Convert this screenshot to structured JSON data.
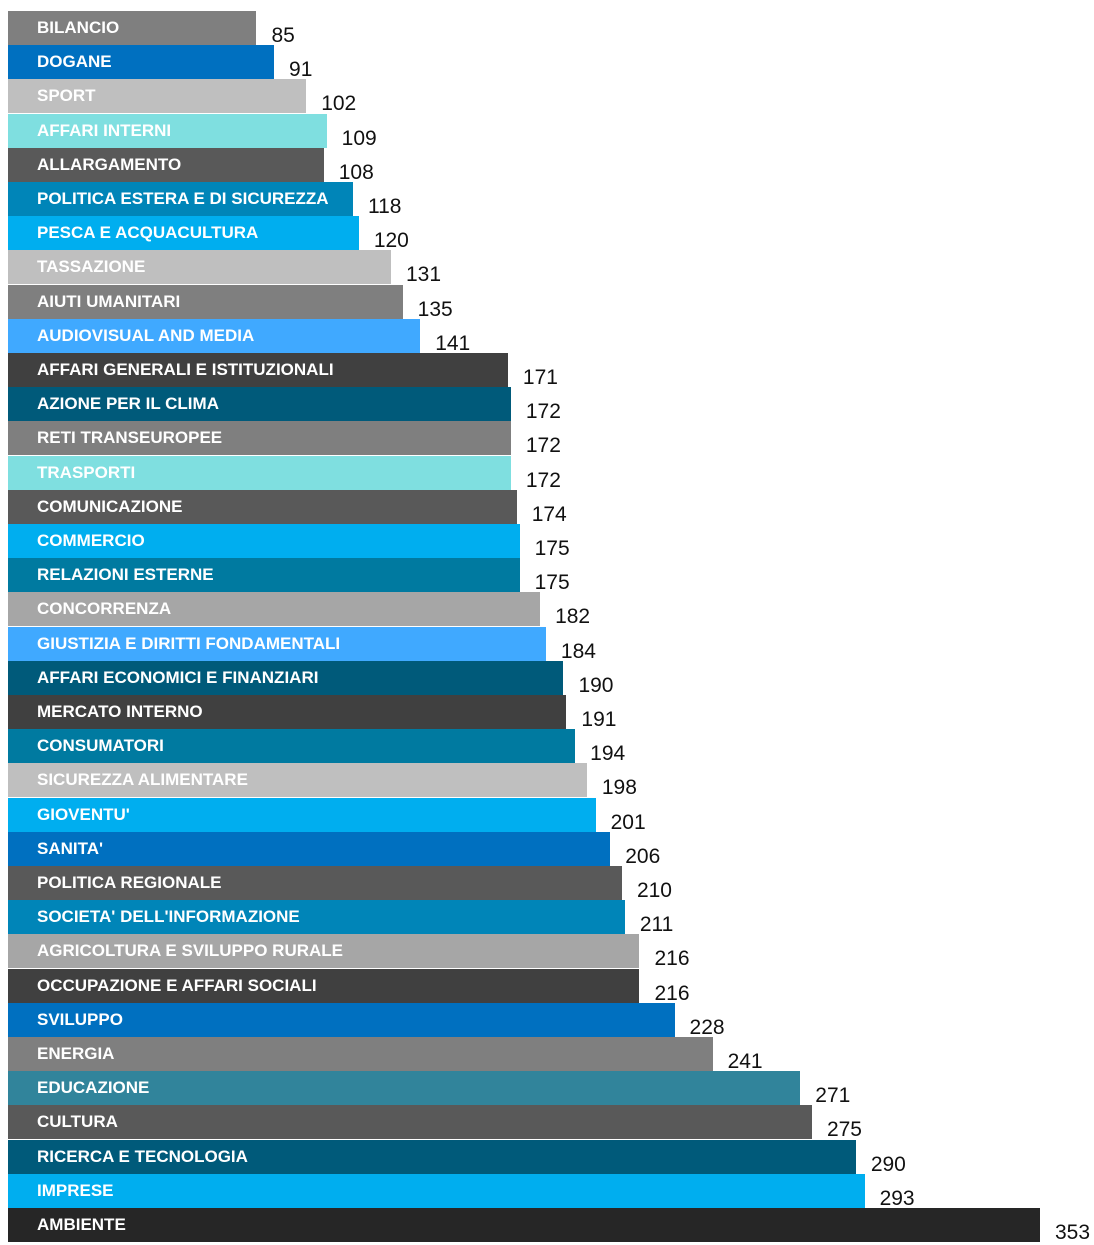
{
  "chart_data": {
    "type": "bar",
    "orientation": "horizontal",
    "title": "",
    "xlabel": "",
    "ylabel": "",
    "xlim": [
      0,
      353
    ],
    "grid": false,
    "legend": "none",
    "categories": [
      "BILANCIO",
      "DOGANE",
      "SPORT",
      "AFFARI INTERNI",
      "ALLARGAMENTO",
      "POLITICA ESTERA E DI SICUREZZA",
      "PESCA E ACQUACULTURA",
      "TASSAZIONE",
      "AIUTI UMANITARI",
      "AUDIOVISUAL AND MEDIA",
      "AFFARI GENERALI E ISTITUZIONALI",
      "AZIONE PER IL CLIMA",
      "RETI TRANSEUROPEE",
      "TRASPORTI",
      "COMUNICAZIONE",
      "COMMERCIO",
      "RELAZIONI ESTERNE",
      "CONCORRENZA",
      "GIUSTIZIA E DIRITTI FONDAMENTALI",
      "AFFARI ECONOMICI E FINANZIARI",
      "MERCATO INTERNO",
      "CONSUMATORI",
      "SICUREZZA ALIMENTARE",
      "GIOVENTU'",
      "SANITA'",
      "POLITICA REGIONALE",
      "SOCIETA' DELL'INFORMAZIONE",
      "AGRICOLTURA E SVILUPPO RURALE",
      "OCCUPAZIONE E AFFARI SOCIALI",
      "SVILUPPO",
      "ENERGIA",
      "EDUCAZIONE",
      "CULTURA",
      "RICERCA E TECNOLOGIA",
      "IMPRESE",
      "AMBIENTE"
    ],
    "values": [
      85,
      91,
      102,
      109,
      108,
      118,
      120,
      131,
      135,
      141,
      171,
      172,
      172,
      172,
      174,
      175,
      175,
      182,
      184,
      190,
      191,
      194,
      198,
      201,
      206,
      210,
      211,
      216,
      216,
      228,
      241,
      271,
      275,
      290,
      293,
      353
    ],
    "colors": [
      "#7f7f7f",
      "#0070c0",
      "#bfbfbf",
      "#7fdfe0",
      "#595959",
      "#0085b8",
      "#00aeef",
      "#bfbfbf",
      "#7f7f7f",
      "#40a9ff",
      "#404040",
      "#005a7a",
      "#7f7f7f",
      "#7fdfe0",
      "#595959",
      "#00aeef",
      "#007aa0",
      "#a6a6a6",
      "#40a9ff",
      "#005a7a",
      "#404040",
      "#007aa0",
      "#bfbfbf",
      "#00aeef",
      "#0070c0",
      "#595959",
      "#0085b8",
      "#a6a6a6",
      "#404040",
      "#0070c0",
      "#7f7f7f",
      "#31849b",
      "#595959",
      "#005a7a",
      "#00aeef",
      "#262626"
    ],
    "label_colors": [
      "#ffffff",
      "#ffffff",
      "#ffffff",
      "#ffffff",
      "#ffffff",
      "#ffffff",
      "#ffffff",
      "#ffffff",
      "#ffffff",
      "#ffffff",
      "#ffffff",
      "#ffffff",
      "#ffffff",
      "#ffffff",
      "#ffffff",
      "#ffffff",
      "#ffffff",
      "#ffffff",
      "#ffffff",
      "#ffffff",
      "#ffffff",
      "#ffffff",
      "#ffffff",
      "#ffffff",
      "#ffffff",
      "#ffffff",
      "#ffffff",
      "#ffffff",
      "#ffffff",
      "#ffffff",
      "#ffffff",
      "#ffffff",
      "#ffffff",
      "#ffffff",
      "#ffffff",
      "#ffffff"
    ]
  }
}
